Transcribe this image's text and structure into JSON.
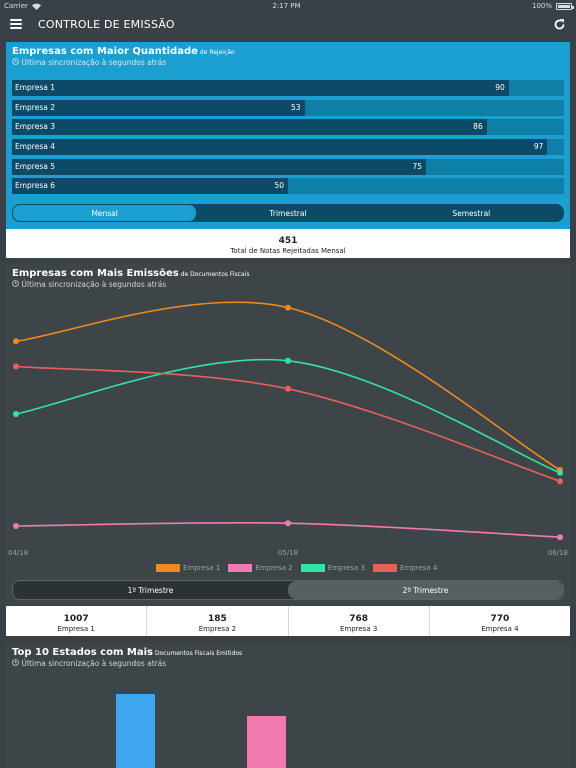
{
  "status": {
    "carrier": "Carrier",
    "time": "2:17 PM",
    "battery": "100%"
  },
  "nav": {
    "title": "CONTROLE DE EMISSÃO"
  },
  "card1": {
    "title": "Empresas com Maior Quantidade",
    "title_small": "de Rejeição",
    "sync": "Última sincronização à segundos atrás",
    "max": 100,
    "rows": [
      {
        "name": "Empresa 1",
        "value": 90
      },
      {
        "name": "Empresa 2",
        "value": 53
      },
      {
        "name": "Empresa 3",
        "value": 86
      },
      {
        "name": "Empresa 4",
        "value": 97
      },
      {
        "name": "Empresa 5",
        "value": 75
      },
      {
        "name": "Empresa 6",
        "value": 50
      }
    ],
    "tabs": [
      "Mensal",
      "Trimestral",
      "Semestral"
    ],
    "active_tab": 0,
    "total": "451",
    "total_label": "Total de Notas Rejeitadas Mensal"
  },
  "card2": {
    "title": "Empresas com Mais Emissões",
    "title_small": "de Documentos Fiscais",
    "sync": "Última sincronização à segundos atrás",
    "tabs": [
      "1º Trimestre",
      "2º Trimestre"
    ],
    "active_tab": 1,
    "totals": [
      {
        "value": "1007",
        "label": "Empresa 1"
      },
      {
        "value": "185",
        "label": "Empresa 2"
      },
      {
        "value": "768",
        "label": "Empresa 3"
      },
      {
        "value": "770",
        "label": "Empresa 4"
      }
    ]
  },
  "chart_data": {
    "type": "line",
    "x": [
      "04/18",
      "05/18",
      "06/18"
    ],
    "ylim": [
      0,
      1000
    ],
    "grid": false,
    "legend": "bottom",
    "series": [
      {
        "name": "Empresa 1",
        "color": "#f08a1c",
        "values": [
          760,
          880,
          300
        ]
      },
      {
        "name": "Empresa 2",
        "color": "#f07ab0",
        "values": [
          100,
          110,
          60
        ]
      },
      {
        "name": "Empresa 3",
        "color": "#2ee5a6",
        "values": [
          500,
          690,
          290
        ]
      },
      {
        "name": "Empresa 4",
        "color": "#e5615a",
        "values": [
          670,
          590,
          260
        ]
      }
    ]
  },
  "card3": {
    "title": "Top 10 Estados com Mais",
    "title_small": "Documentos Fiscais Emitidos",
    "sync": "Última sincronização à segundos atrás",
    "bars": [
      {
        "color": "#3ea6ee",
        "value": 1.0
      },
      {
        "color": "#f07ab0",
        "value": 0.72
      }
    ]
  },
  "icons": {
    "menu": "menu-icon",
    "refresh": "refresh-icon",
    "clock": "clock-icon",
    "wifi": "wifi-icon",
    "battery": "battery-icon"
  }
}
